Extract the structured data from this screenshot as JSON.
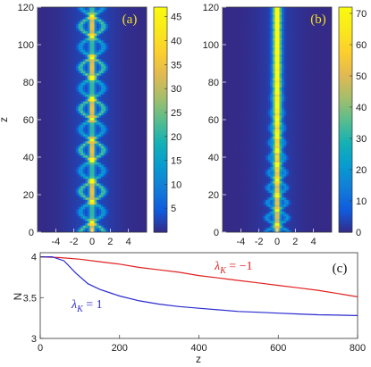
{
  "chart_data": [
    {
      "type": "heatmap",
      "panel_label": "(a)",
      "ylabel": "z",
      "x_ticks": [
        "-4",
        "-2",
        "0",
        "2",
        "4"
      ],
      "x_tick_values": [
        -4,
        -2,
        0,
        2,
        4
      ],
      "xlim": [
        -6,
        6
      ],
      "y_ticks": [
        "0",
        "20",
        "40",
        "60",
        "80",
        "100",
        "120"
      ],
      "y_tick_values": [
        0,
        20,
        40,
        60,
        80,
        100,
        120
      ],
      "ylim": [
        0,
        120
      ],
      "colorbar": {
        "ticks": [
          "5",
          "10",
          "15",
          "20",
          "25",
          "30",
          "35",
          "40",
          "45"
        ],
        "tick_values": [
          5,
          10,
          15,
          20,
          25,
          30,
          35,
          40,
          45
        ],
        "range": [
          0,
          47
        ]
      },
      "pattern": "breathing"
    },
    {
      "type": "heatmap",
      "panel_label": "(b)",
      "ylabel": "",
      "x_ticks": [
        "-4",
        "-2",
        "0",
        "2",
        "4"
      ],
      "x_tick_values": [
        -4,
        -2,
        0,
        2,
        4
      ],
      "xlim": [
        -6,
        6
      ],
      "y_ticks": [
        "0",
        "20",
        "40",
        "60",
        "80",
        "100",
        "120"
      ],
      "y_tick_values": [
        0,
        20,
        40,
        60,
        80,
        100,
        120
      ],
      "ylim": [
        0,
        120
      ],
      "colorbar": {
        "ticks": [
          "0",
          "10",
          "20",
          "30",
          "40",
          "50",
          "60",
          "70"
        ],
        "tick_values": [
          0,
          10,
          20,
          30,
          40,
          50,
          60,
          70
        ],
        "range": [
          0,
          72
        ]
      },
      "pattern": "focusing"
    },
    {
      "type": "line",
      "panel_label": "(c)",
      "xlabel": "z",
      "ylabel": "N",
      "xlim": [
        0,
        800
      ],
      "ylim": [
        3,
        4.05
      ],
      "x_ticks": [
        "0",
        "200",
        "400",
        "600",
        "800"
      ],
      "x_tick_values": [
        0,
        200,
        400,
        600,
        800
      ],
      "y_ticks": [
        "3",
        "3.5",
        "4"
      ],
      "y_tick_values": [
        3,
        3.5,
        4
      ],
      "series": [
        {
          "name": "λ_K = −1",
          "label_main": "λ",
          "label_sub": "K",
          "label_eq": " = −1",
          "color": "#e02020",
          "x": [
            0,
            50,
            100,
            150,
            200,
            250,
            300,
            350,
            400,
            450,
            500,
            550,
            600,
            650,
            700,
            750,
            800
          ],
          "y": [
            4.0,
            3.99,
            3.97,
            3.94,
            3.91,
            3.87,
            3.84,
            3.81,
            3.77,
            3.74,
            3.71,
            3.68,
            3.65,
            3.62,
            3.59,
            3.55,
            3.51
          ]
        },
        {
          "name": "λ_K = 1",
          "label_main": "λ",
          "label_sub": "K",
          "label_eq": " = 1",
          "color": "#2a2ad0",
          "x": [
            0,
            30,
            60,
            90,
            120,
            150,
            200,
            250,
            300,
            350,
            400,
            450,
            500,
            550,
            600,
            650,
            700,
            750,
            800
          ],
          "y": [
            4.0,
            4.0,
            3.95,
            3.8,
            3.67,
            3.6,
            3.52,
            3.46,
            3.42,
            3.39,
            3.37,
            3.35,
            3.33,
            3.32,
            3.31,
            3.3,
            3.29,
            3.285,
            3.28
          ]
        }
      ]
    }
  ]
}
